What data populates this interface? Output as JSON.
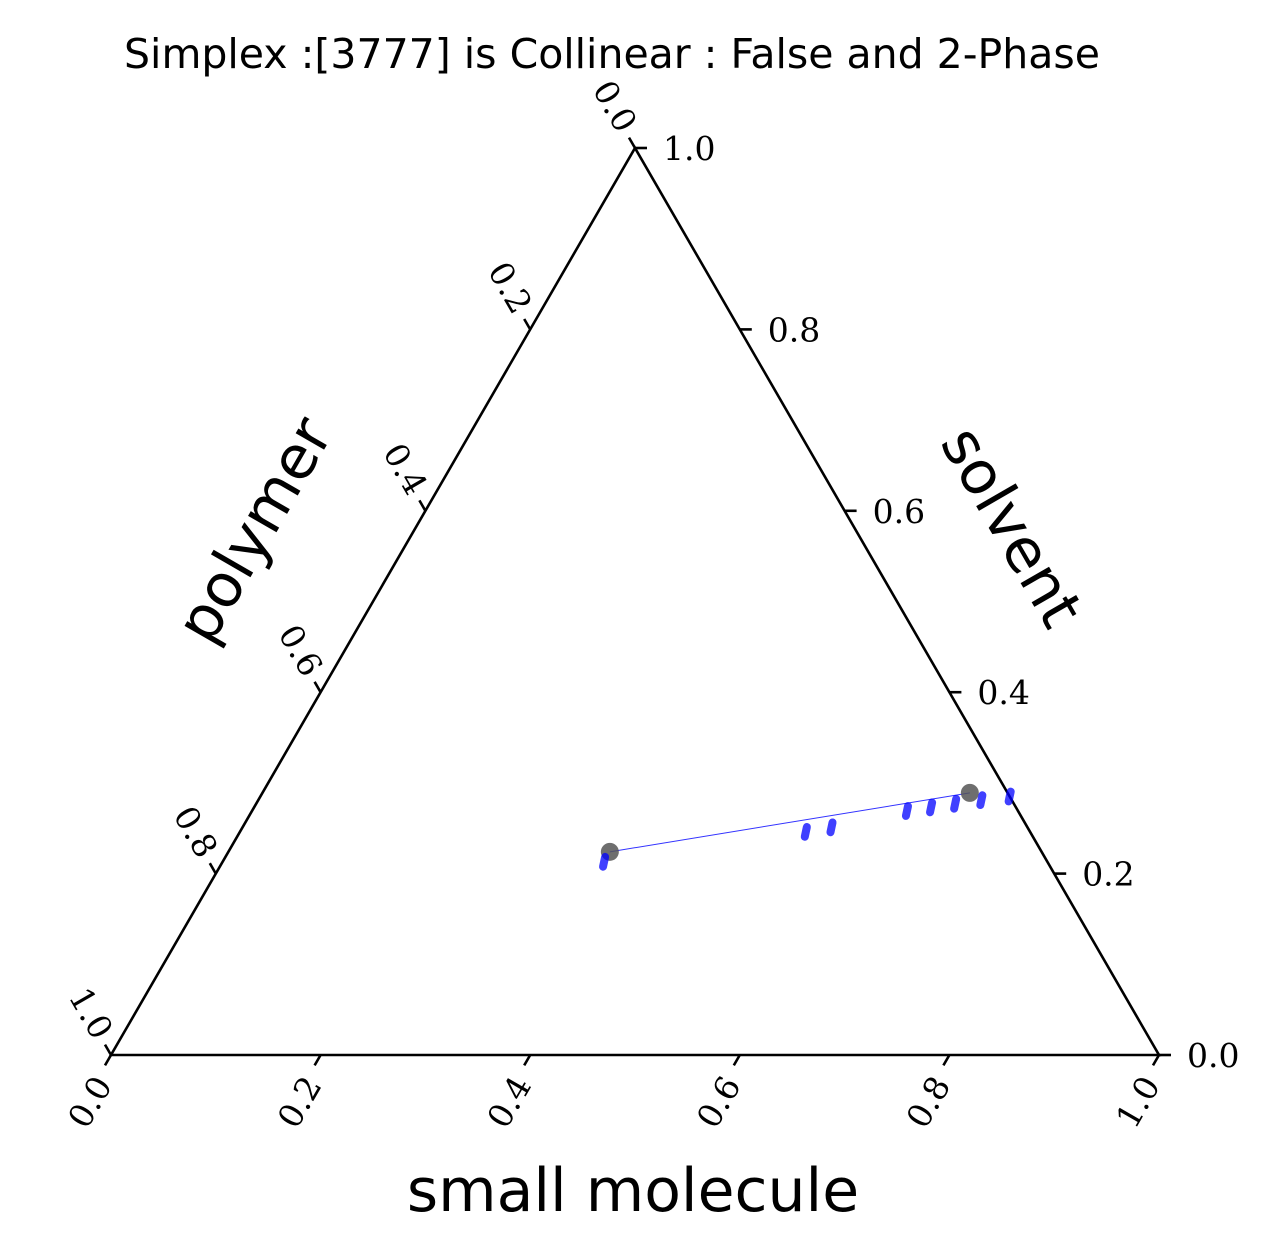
{
  "chart_data": {
    "type": "scatter",
    "subtype": "ternary",
    "title": "Simplex :[3777] is Collinear : False and 2-Phase",
    "axes": {
      "bottom": {
        "label": "small molecule",
        "ticks": [
          "0.0",
          "0.2",
          "0.4",
          "0.6",
          "0.8",
          "1.0"
        ],
        "range": [
          0,
          1
        ]
      },
      "right": {
        "label": "solvent",
        "ticks": [
          "0.0",
          "0.2",
          "0.4",
          "0.6",
          "0.8",
          "1.0"
        ],
        "range": [
          0,
          1
        ]
      },
      "left": {
        "label": "polymer",
        "ticks": [
          "0.0",
          "0.2",
          "0.4",
          "0.6",
          "0.8",
          "1.0"
        ],
        "range": [
          0,
          1
        ]
      }
    },
    "tie_line": {
      "color": "#0000ff",
      "endpoints": [
        {
          "small_molecule": 0.364,
          "solvent": 0.224,
          "polymer": 0.412
        },
        {
          "small_molecule": 0.675,
          "solvent": 0.289,
          "polymer": 0.036
        }
      ]
    },
    "vertices": {
      "color": "#555555",
      "points": [
        {
          "small_molecule": 0.364,
          "solvent": 0.224,
          "polymer": 0.412
        },
        {
          "small_molecule": 0.675,
          "solvent": 0.289,
          "polymer": 0.036
        }
      ]
    },
    "samples": {
      "color": "#0000ff",
      "points": [
        {
          "small_molecule": 0.364,
          "solvent": 0.213
        },
        {
          "small_molecule": 0.54,
          "solvent": 0.246
        },
        {
          "small_molecule": 0.562,
          "solvent": 0.251
        },
        {
          "small_molecule": 0.625,
          "solvent": 0.269
        },
        {
          "small_molecule": 0.646,
          "solvent": 0.273
        },
        {
          "small_molecule": 0.667,
          "solvent": 0.277
        },
        {
          "small_molecule": 0.69,
          "solvent": 0.281
        },
        {
          "small_molecule": 0.715,
          "solvent": 0.285
        }
      ]
    },
    "grid": false,
    "legend": "none"
  }
}
